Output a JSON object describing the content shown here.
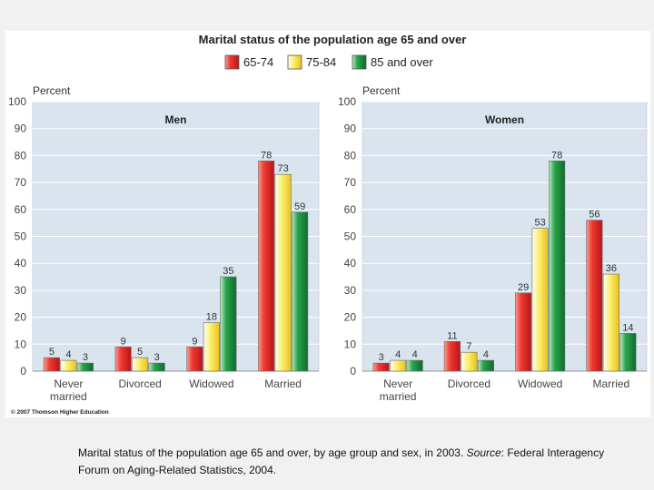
{
  "chart_data": {
    "type": "bar",
    "title": "Marital status of the population age 65 and over",
    "ylabel": "Percent",
    "ylim": [
      0,
      100
    ],
    "yticks": [
      0,
      10,
      20,
      30,
      40,
      50,
      60,
      70,
      80,
      90,
      100
    ],
    "legend": {
      "placement": "top-center",
      "entries": [
        "65-74",
        "75-84",
        "85 and over"
      ]
    },
    "categories": [
      [
        "Never",
        "married"
      ],
      [
        "Divorced"
      ],
      [
        "Widowed"
      ],
      [
        "Married"
      ]
    ],
    "grid": true,
    "colors": [
      "#d8282b",
      "#f7e43a",
      "#1b8b3e"
    ],
    "panels": [
      {
        "title": "Men",
        "series": [
          {
            "name": "65-74",
            "values": [
              5,
              9,
              9,
              78
            ]
          },
          {
            "name": "75-84",
            "values": [
              4,
              5,
              18,
              73
            ]
          },
          {
            "name": "85 and over",
            "values": [
              3,
              3,
              35,
              59
            ]
          }
        ]
      },
      {
        "title": "Women",
        "series": [
          {
            "name": "65-74",
            "values": [
              3,
              11,
              29,
              56
            ]
          },
          {
            "name": "75-84",
            "values": [
              4,
              7,
              53,
              36
            ]
          },
          {
            "name": "85 and over",
            "values": [
              4,
              4,
              78,
              14
            ]
          }
        ]
      }
    ]
  },
  "copyright": "© 2007 Thomson Higher Education",
  "caption": {
    "main": "Marital status of the population age 65 and over, by age group and sex, in 2003. ",
    "source_label": "Source",
    "source_text": ": Federal Interagency Forum on Aging-Related Statistics, 2004."
  }
}
